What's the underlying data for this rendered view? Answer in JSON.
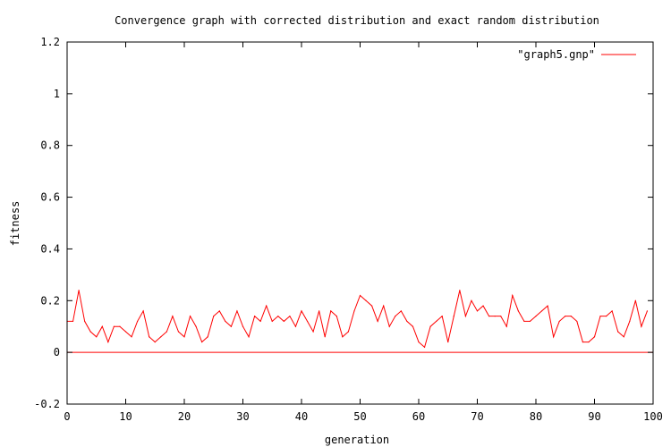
{
  "chart_data": {
    "type": "line",
    "title": "Convergence graph with corrected distribution and exact random distribution",
    "xlabel": "generation",
    "ylabel": "fitness",
    "xlim": [
      0,
      100
    ],
    "ylim": [
      -0.2,
      1.2
    ],
    "xticks": [
      0,
      10,
      20,
      30,
      40,
      50,
      60,
      70,
      80,
      90,
      100
    ],
    "xtick_labels": [
      "0",
      "10",
      "20",
      "30",
      "40",
      "50",
      "60",
      "70",
      "80",
      "90",
      "100"
    ],
    "yticks": [
      -0.2,
      0,
      0.2,
      0.4,
      0.6,
      0.8,
      1,
      1.2
    ],
    "ytick_labels": [
      "-0.2",
      "0",
      "0.2",
      "0.4",
      "0.6",
      "0.8",
      "1",
      "1.2"
    ],
    "grid": false,
    "legend_position": "top-right",
    "zero_line": true,
    "series": [
      {
        "name": "\"graph5.gnp\"",
        "color": "#ff0000",
        "x": [
          0,
          1,
          2,
          3,
          4,
          5,
          6,
          7,
          8,
          9,
          10,
          11,
          12,
          13,
          14,
          15,
          16,
          17,
          18,
          19,
          20,
          21,
          22,
          23,
          24,
          25,
          26,
          27,
          28,
          29,
          30,
          31,
          32,
          33,
          34,
          35,
          36,
          37,
          38,
          39,
          40,
          41,
          42,
          43,
          44,
          45,
          46,
          47,
          48,
          49,
          50,
          51,
          52,
          53,
          54,
          55,
          56,
          57,
          58,
          59,
          60,
          61,
          62,
          63,
          64,
          65,
          66,
          67,
          68,
          69,
          70,
          71,
          72,
          73,
          74,
          75,
          76,
          77,
          78,
          79,
          80,
          81,
          82,
          83,
          84,
          85,
          86,
          87,
          88,
          89,
          90,
          91,
          92,
          93,
          94,
          95,
          96,
          97,
          98,
          99
        ],
        "y": [
          0.12,
          0.12,
          0.24,
          0.12,
          0.08,
          0.06,
          0.1,
          0.04,
          0.1,
          0.1,
          0.08,
          0.06,
          0.12,
          0.16,
          0.06,
          0.04,
          0.06,
          0.08,
          0.14,
          0.08,
          0.06,
          0.14,
          0.1,
          0.04,
          0.06,
          0.14,
          0.16,
          0.12,
          0.1,
          0.16,
          0.1,
          0.06,
          0.14,
          0.12,
          0.18,
          0.12,
          0.14,
          0.12,
          0.14,
          0.1,
          0.16,
          0.12,
          0.08,
          0.16,
          0.06,
          0.16,
          0.14,
          0.06,
          0.08,
          0.16,
          0.22,
          0.2,
          0.18,
          0.12,
          0.18,
          0.1,
          0.14,
          0.16,
          0.12,
          0.1,
          0.04,
          0.02,
          0.1,
          0.12,
          0.14,
          0.04,
          0.14,
          0.24,
          0.14,
          0.2,
          0.16,
          0.18,
          0.14,
          0.14,
          0.14,
          0.1,
          0.22,
          0.16,
          0.12,
          0.12,
          0.14,
          0.16,
          0.18,
          0.06,
          0.12,
          0.14,
          0.14,
          0.12,
          0.04,
          0.04,
          0.06,
          0.14,
          0.14,
          0.16,
          0.08,
          0.06,
          0.12,
          0.2,
          0.1,
          0.16
        ]
      }
    ]
  }
}
